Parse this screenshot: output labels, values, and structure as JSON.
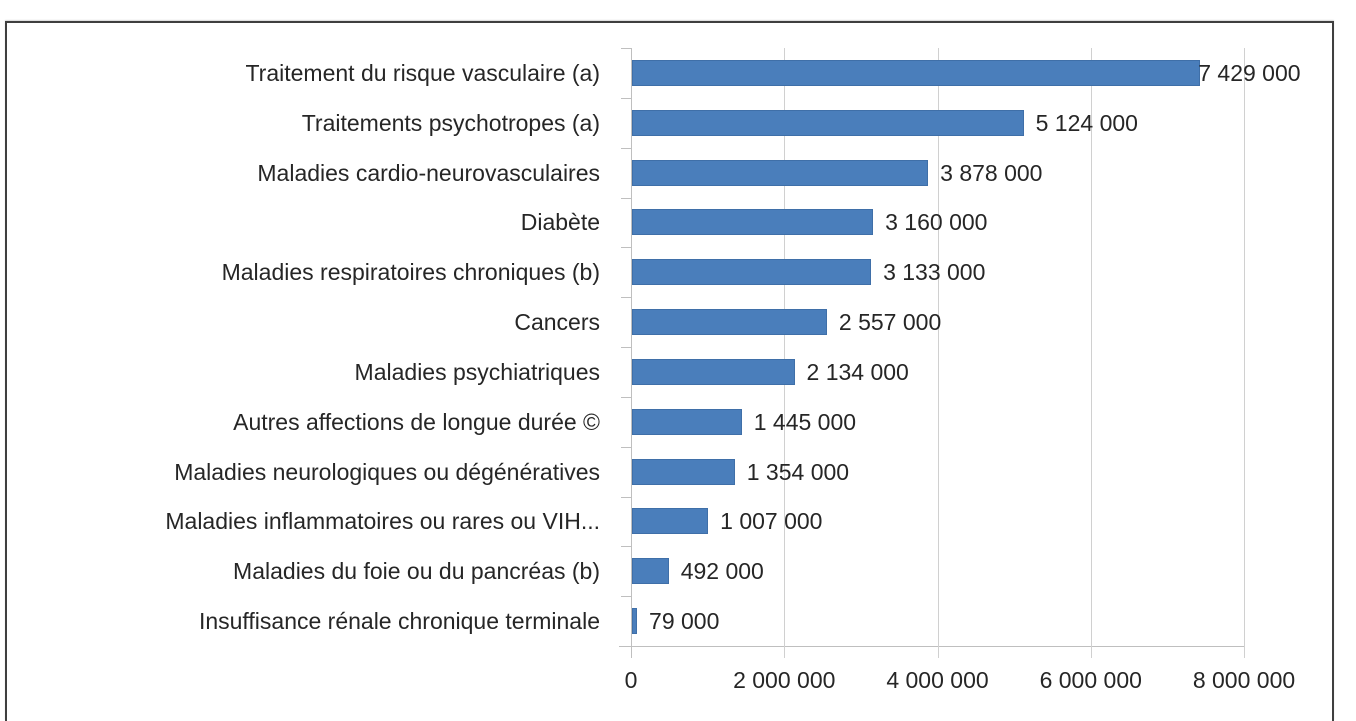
{
  "chart_data": {
    "type": "bar",
    "orientation": "horizontal",
    "title": "",
    "xlabel": "",
    "ylabel": "",
    "categories": [
      "Traitement du risque vasculaire (a)",
      "Traitements psychotropes (a)",
      "Maladies cardio-neurovasculaires",
      "Diabète",
      "Maladies respiratoires chroniques (b)",
      "Cancers",
      "Maladies psychiatriques",
      "Autres affections de longue durée ©",
      "Maladies neurologiques ou dégénératives",
      "Maladies inflammatoires ou rares ou VIH...",
      "Maladies du foie ou du pancréas (b)",
      "Insuffisance rénale chronique terminale"
    ],
    "values": [
      7429000,
      5124000,
      3878000,
      3160000,
      3133000,
      2557000,
      2134000,
      1445000,
      1354000,
      1007000,
      492000,
      79000
    ],
    "value_labels": [
      "7 429 000",
      "5 124 000",
      "3 878 000",
      "3 160 000",
      "3 133 000",
      "2 557 000",
      "2 134 000",
      "1 445 000",
      "1 354 000",
      "1 007 000",
      "492 000",
      "79 000"
    ],
    "xlim": [
      0,
      8000000
    ],
    "x_ticks": [
      0,
      2000000,
      4000000,
      6000000,
      8000000
    ],
    "x_tick_labels": [
      "0",
      "2 000 000",
      "4 000 000",
      "6 000 000",
      "8 000 000"
    ],
    "grid": {
      "vertical": true,
      "horizontal": false
    },
    "legend": null,
    "bar_color": "#4a7ebb"
  },
  "colors": {
    "bar": "#4a7ebb",
    "grid": "#d0d0d0",
    "frame": "#3f3f3f",
    "text": "#262626"
  }
}
